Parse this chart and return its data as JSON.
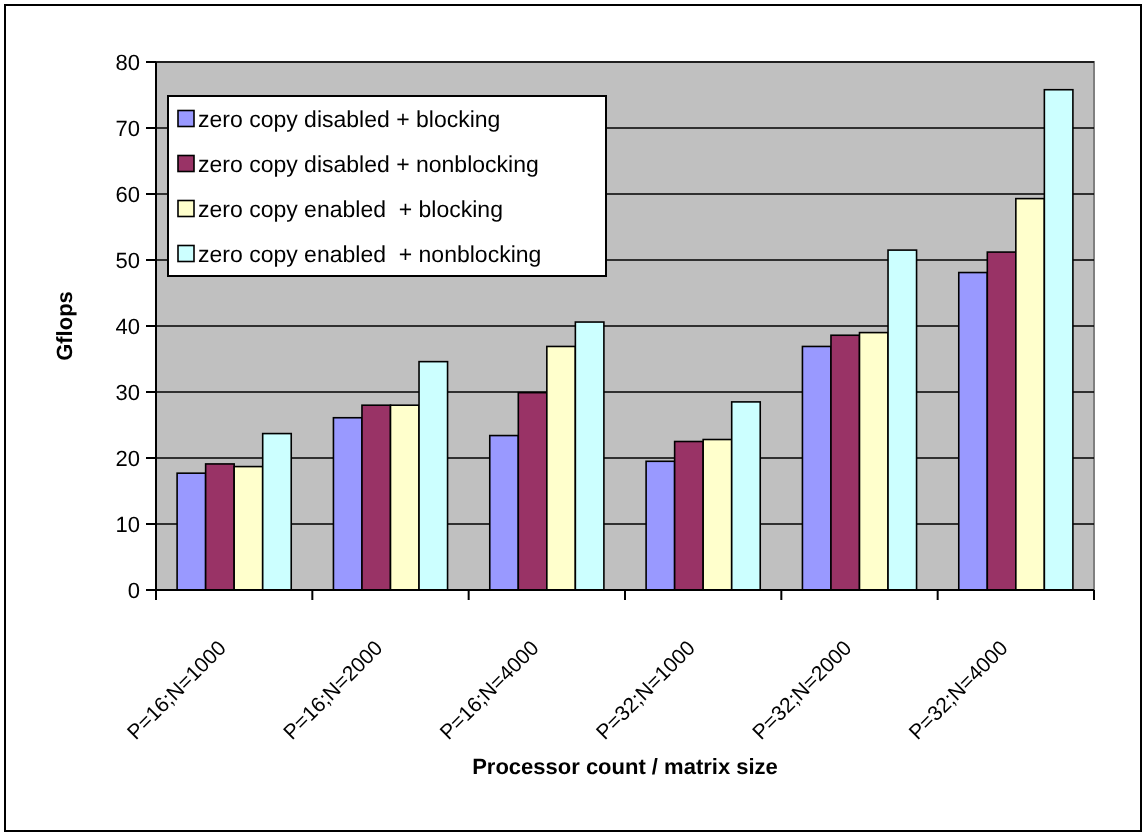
{
  "chart_data": {
    "type": "bar",
    "xlabel": "Processor count / matrix size",
    "ylabel": "Gflops",
    "categories": [
      "P=16;N=1000",
      "P=16;N=2000",
      "P=16;N=4000",
      "P=32;N=1000",
      "P=32;N=2000",
      "P=32;N=4000"
    ],
    "series": [
      {
        "name": "zero copy disabled + blocking",
        "color": "#9999ff",
        "values": [
          17.7,
          26.1,
          23.4,
          19.5,
          36.9,
          48.1
        ]
      },
      {
        "name": "zero copy disabled + nonblocking",
        "color": "#993366",
        "values": [
          19.1,
          28,
          29.9,
          22.5,
          38.6,
          51.2
        ]
      },
      {
        "name": "zero copy enabled  + blocking",
        "color": "#ffffcc",
        "values": [
          18.7,
          28,
          36.9,
          22.8,
          39,
          59.3
        ]
      },
      {
        "name": "zero copy enabled  + nonblocking",
        "color": "#ccffff",
        "values": [
          23.7,
          34.6,
          40.6,
          28.5,
          51.5,
          75.8
        ]
      }
    ],
    "ylim": [
      0,
      80
    ],
    "yticks": [
      0,
      10,
      20,
      30,
      40,
      50,
      60,
      70,
      80
    ],
    "grid": "y",
    "legend": "top left"
  }
}
